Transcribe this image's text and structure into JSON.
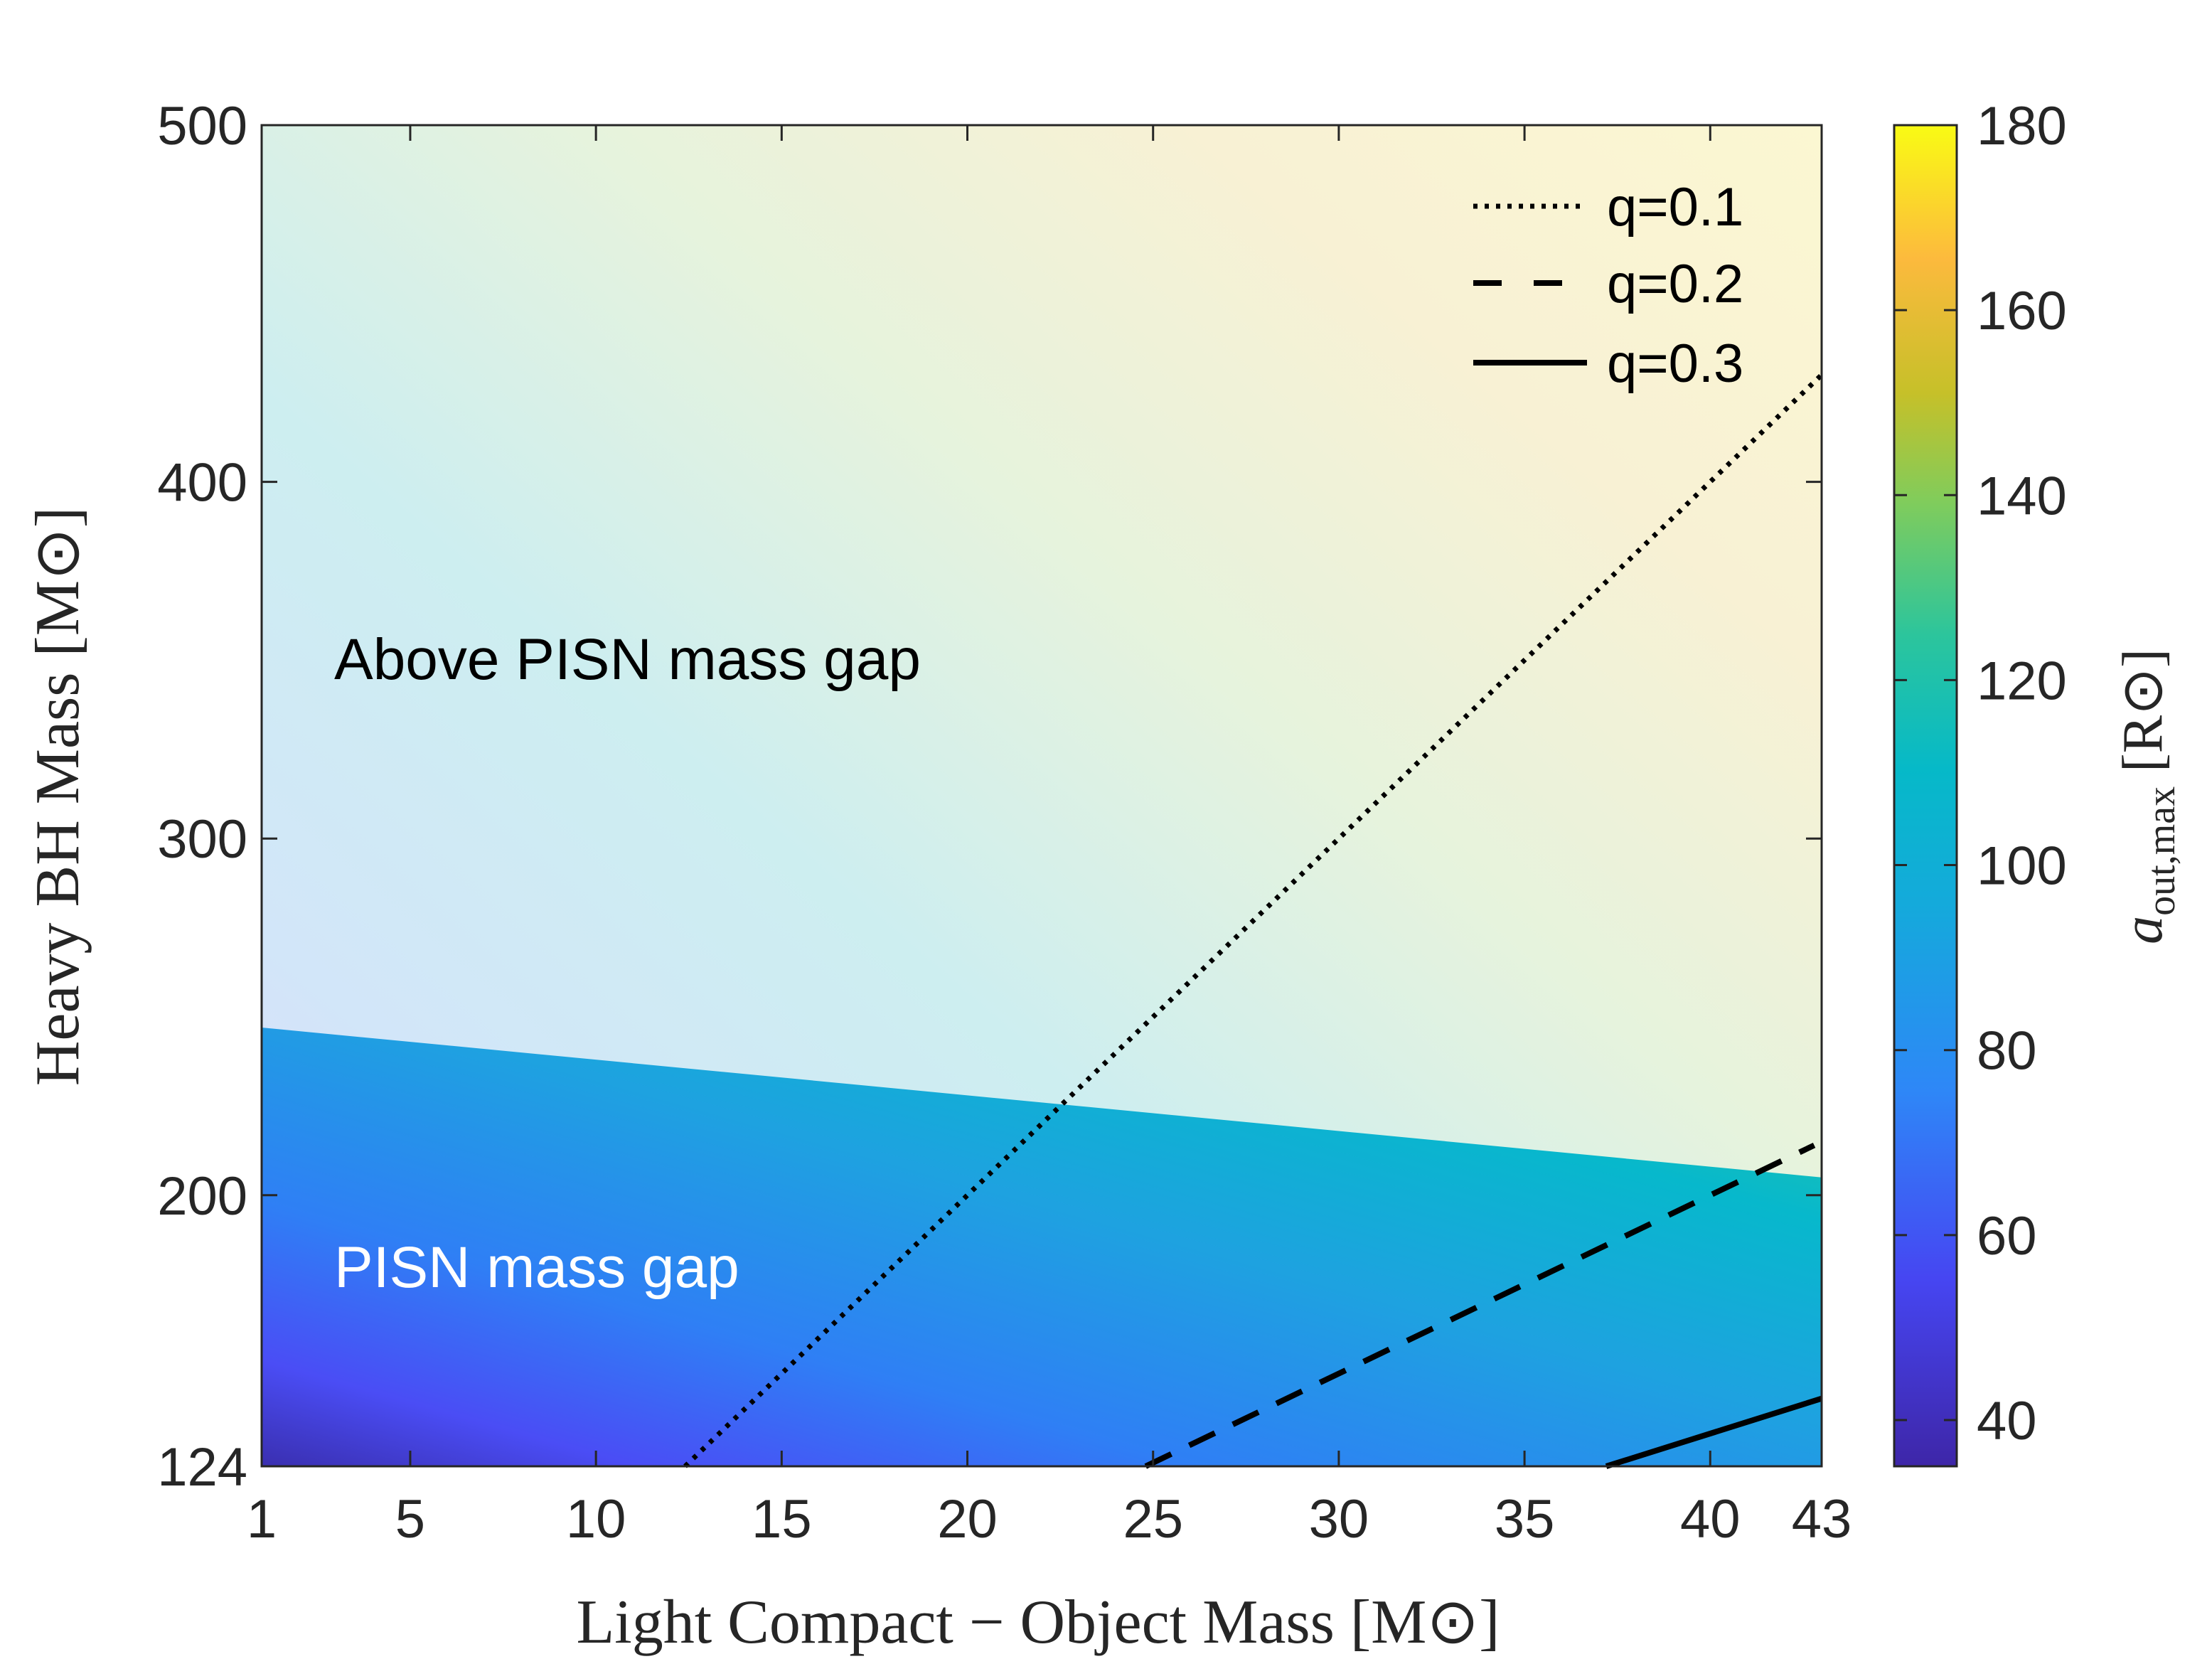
{
  "chart_data": {
    "type": "heatmap",
    "title": "",
    "xlabel": "Light Compact − Object Mass [M⊙]",
    "ylabel": "Heavy BH Mass [M⊙]",
    "xlim": [
      1,
      43
    ],
    "ylim": [
      124,
      500
    ],
    "xticks": [
      1,
      5,
      10,
      15,
      20,
      25,
      30,
      35,
      40,
      43
    ],
    "yticks": [
      124,
      200,
      300,
      400,
      500
    ],
    "colorbar": {
      "label_main": "a",
      "label_sub": "out,max",
      "label_unit": " [R⊙]",
      "range": [
        35,
        180
      ],
      "ticks": [
        40,
        60,
        80,
        100,
        120,
        140,
        160,
        180
      ]
    },
    "regions": [
      {
        "name": "Above PISN mass gap",
        "text_color": "#000000"
      },
      {
        "name": "PISN mass gap",
        "text_color": "#ffffff"
      }
    ],
    "pisn_gap_upper_boundary": {
      "x": [
        1,
        43
      ],
      "y": [
        247,
        205
      ]
    },
    "series": [
      {
        "name": "q=0.1",
        "style": "dotted",
        "x": [
          12.4,
          43
        ],
        "y": [
          124,
          430
        ]
      },
      {
        "name": "q=0.2",
        "style": "dashed",
        "x": [
          24.8,
          42.8
        ],
        "y": [
          124,
          214
        ]
      },
      {
        "name": "q=0.3",
        "style": "solid",
        "x": [
          37.2,
          43
        ],
        "y": [
          124,
          143
        ]
      }
    ]
  }
}
